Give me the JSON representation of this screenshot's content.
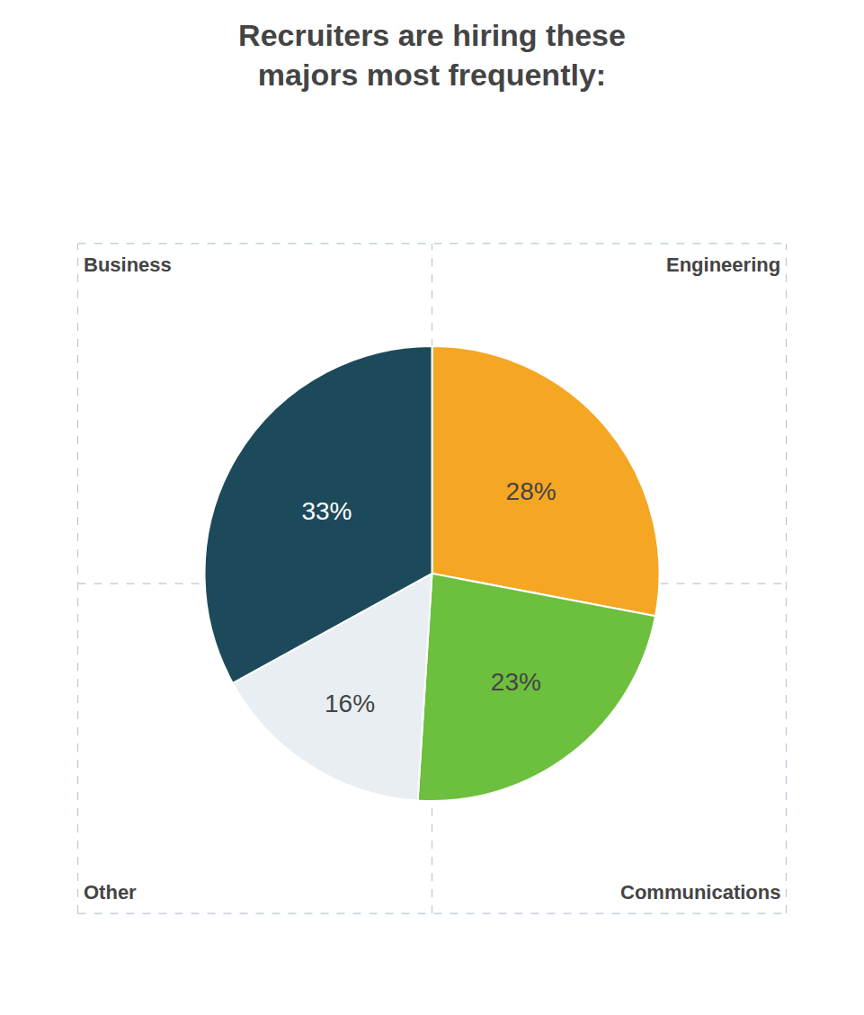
{
  "chart_data": {
    "type": "pie",
    "title": "Recruiters are hiring these\nmajors most frequently:",
    "categories": [
      "Engineering",
      "Communications",
      "Other",
      "Business"
    ],
    "values": [
      28,
      23,
      16,
      33
    ],
    "value_labels": [
      "28%",
      "23%",
      "16%",
      "33%"
    ],
    "colors": [
      "#f5a623",
      "#6dbf3e",
      "#e8eef2",
      "#1d4a5a"
    ],
    "data_labels": true
  }
}
